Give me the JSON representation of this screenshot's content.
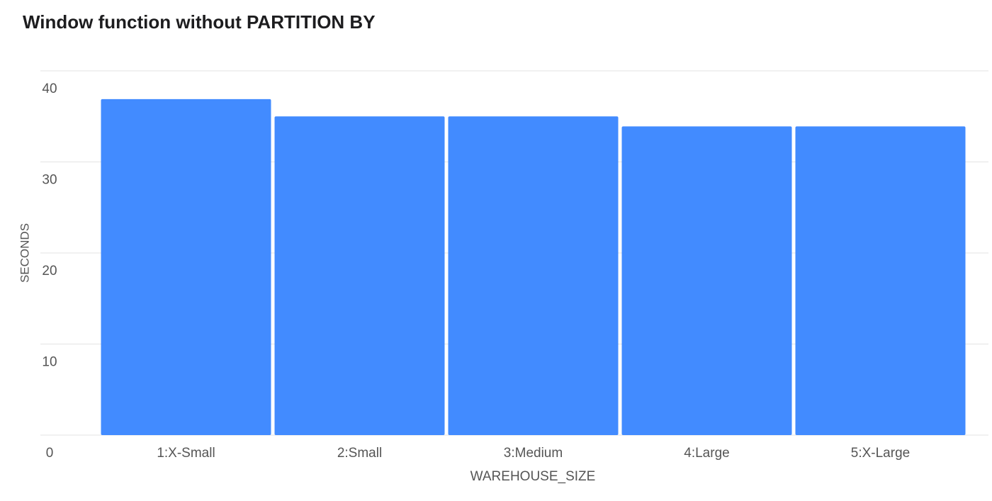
{
  "chart_data": {
    "type": "bar",
    "title": "Window function without PARTITION BY",
    "x_label": "WAREHOUSE_SIZE",
    "y_label": "SECONDS",
    "categories": [
      "1:X-Small",
      "2:Small",
      "3:Medium",
      "4:Large",
      "5:X-Large"
    ],
    "values": [
      36.9,
      35.0,
      35.0,
      33.9,
      33.9
    ],
    "color": "#428bff",
    "ylim": [
      0,
      40
    ],
    "yticks": [
      0,
      10,
      20,
      30,
      40
    ],
    "grid": true
  }
}
